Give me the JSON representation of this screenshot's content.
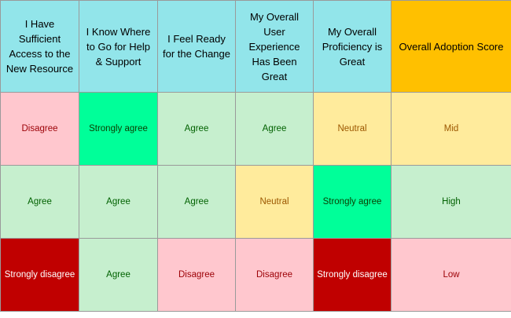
{
  "headers": [
    "I Have Sufficient Access to the New Resource",
    "I Know Where to Go for Help & Support",
    "I Feel Ready for the Change",
    "My Overall User Experience Has Been Great",
    "My Overall Proficiency is Great",
    "Overall Adoption Score"
  ],
  "rows": [
    [
      "Disagree",
      "Strongly agree",
      "Agree",
      "Agree",
      "Neutral",
      "Mid"
    ],
    [
      "Agree",
      "Agree",
      "Agree",
      "Neutral",
      "Strongly agree",
      "High"
    ],
    [
      "Strongly disagree",
      "Agree",
      "Disagree",
      "Disagree",
      "Strongly disagree",
      "Low"
    ]
  ],
  "colors": {
    "header_bg": "#92e5ea",
    "score_header_bg": "#ffc000",
    "disagree": "#ffc7ce",
    "strongly_agree": "#00ff99",
    "agree": "#c6efce",
    "neutral": "#ffeb9c",
    "strongly_disagree": "#c00000"
  }
}
